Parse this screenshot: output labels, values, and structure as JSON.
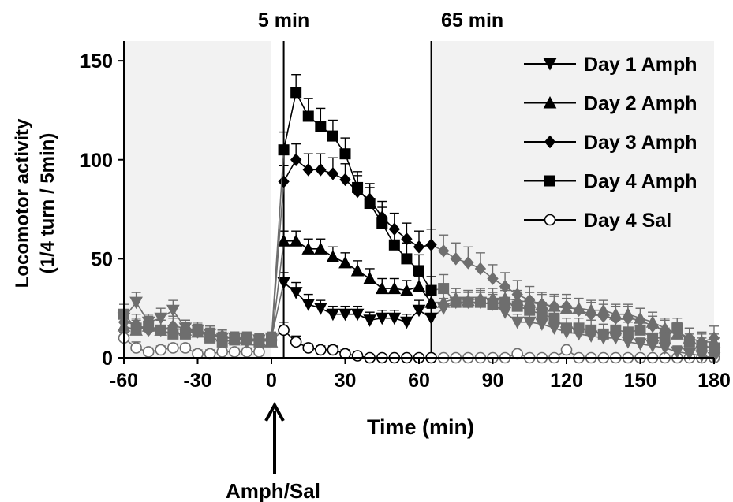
{
  "chart_data": {
    "type": "line",
    "xlabel": "Time (min)",
    "ylabel": "Locomotor activity",
    "ylabel2": "(1/4 turn / 5min)",
    "xlim": [
      -60,
      180
    ],
    "ylim": [
      0,
      160
    ],
    "xticks": [
      -60,
      -30,
      0,
      30,
      60,
      90,
      120,
      150,
      180
    ],
    "yticks": [
      0,
      50,
      100,
      150
    ],
    "grid": false,
    "legend": "top-right",
    "colors": {
      "highlight": "#000000",
      "faded": "#6e6e6e",
      "shade": "#f2f2f2",
      "axis": "#000000"
    },
    "shaded_regions": [
      [
        -60,
        0
      ],
      [
        65,
        180
      ]
    ],
    "vlines": [
      {
        "x": 5,
        "label": "5 min"
      },
      {
        "x": 65,
        "label": "65 min"
      }
    ],
    "annotation": {
      "x": 0,
      "label": "Amph/Sal"
    },
    "series": [
      {
        "name": "Day 1 Amph",
        "marker": "triangle-down",
        "fill": "filled",
        "x": [
          -60,
          -55,
          -50,
          -45,
          -40,
          -35,
          -30,
          -25,
          -20,
          -15,
          -10,
          -5,
          0,
          5,
          10,
          15,
          20,
          25,
          30,
          35,
          40,
          45,
          50,
          55,
          60,
          65,
          70,
          75,
          80,
          85,
          90,
          95,
          100,
          105,
          110,
          115,
          120,
          125,
          130,
          135,
          140,
          145,
          150,
          155,
          160,
          165,
          170,
          175,
          180
        ],
        "y": [
          20,
          28,
          18,
          20,
          24,
          15,
          14,
          12,
          10,
          10,
          8,
          9,
          10,
          38,
          33,
          27,
          25,
          22,
          22,
          22,
          19,
          20,
          20,
          18,
          24,
          20,
          25,
          28,
          28,
          28,
          27,
          23,
          18,
          18,
          17,
          15,
          13,
          12,
          11,
          10,
          10,
          8,
          7,
          6,
          5,
          3,
          2,
          1,
          0
        ],
        "err": [
          4,
          5,
          4,
          5,
          5,
          4,
          3,
          3,
          3,
          3,
          3,
          3,
          3,
          5,
          5,
          5,
          4,
          4,
          4,
          4,
          4,
          4,
          4,
          4,
          5,
          5,
          5,
          5,
          5,
          5,
          5,
          5,
          4,
          4,
          4,
          4,
          4,
          4,
          4,
          3,
          3,
          3,
          3,
          3,
          3,
          3,
          3,
          2,
          2
        ]
      },
      {
        "name": "Day 2 Amph",
        "marker": "triangle-up",
        "fill": "filled",
        "x": [
          -60,
          -55,
          -50,
          -45,
          -40,
          -35,
          -30,
          -25,
          -20,
          -15,
          -10,
          -5,
          0,
          5,
          10,
          15,
          20,
          25,
          30,
          35,
          40,
          45,
          50,
          55,
          60,
          65,
          70,
          75,
          80,
          85,
          90,
          95,
          100,
          105,
          110,
          115,
          120,
          125,
          130,
          135,
          140,
          145,
          150,
          155,
          160,
          165,
          170,
          175,
          180
        ],
        "y": [
          16,
          14,
          16,
          14,
          15,
          14,
          13,
          12,
          11,
          10,
          9,
          9,
          8,
          59,
          59,
          55,
          55,
          51,
          48,
          44,
          40,
          35,
          35,
          34,
          36,
          28,
          28,
          30,
          29,
          30,
          30,
          30,
          29,
          28,
          27,
          26,
          25,
          25,
          24,
          24,
          22,
          22,
          20,
          18,
          15,
          12,
          10,
          8,
          8
        ],
        "err": [
          5,
          5,
          5,
          5,
          5,
          4,
          4,
          4,
          3,
          3,
          3,
          3,
          3,
          5,
          5,
          5,
          5,
          5,
          5,
          5,
          5,
          5,
          5,
          5,
          5,
          5,
          5,
          5,
          5,
          5,
          5,
          5,
          5,
          5,
          5,
          5,
          5,
          5,
          5,
          5,
          5,
          5,
          5,
          5,
          5,
          5,
          5,
          4,
          4
        ]
      },
      {
        "name": "Day 3 Amph",
        "marker": "diamond",
        "fill": "filled",
        "x": [
          -60,
          -55,
          -50,
          -45,
          -40,
          -35,
          -30,
          -25,
          -20,
          -15,
          -10,
          -5,
          0,
          5,
          10,
          15,
          20,
          25,
          30,
          35,
          40,
          45,
          50,
          55,
          60,
          65,
          70,
          75,
          80,
          85,
          90,
          95,
          100,
          105,
          110,
          115,
          120,
          125,
          130,
          135,
          140,
          145,
          150,
          155,
          160,
          165,
          170,
          175,
          180
        ],
        "y": [
          18,
          17,
          14,
          14,
          16,
          15,
          13,
          12,
          11,
          10,
          10,
          9,
          9,
          89,
          100,
          95,
          95,
          93,
          90,
          84,
          80,
          71,
          65,
          60,
          56,
          57,
          54,
          50,
          48,
          45,
          40,
          36,
          32,
          29,
          27,
          26,
          26,
          24,
          22,
          21,
          20,
          20,
          19,
          16,
          14,
          13,
          10,
          8,
          10
        ],
        "err": [
          5,
          5,
          5,
          5,
          5,
          4,
          4,
          4,
          3,
          3,
          3,
          3,
          3,
          8,
          8,
          8,
          8,
          8,
          8,
          8,
          8,
          8,
          8,
          8,
          8,
          8,
          8,
          8,
          8,
          8,
          7,
          7,
          7,
          7,
          6,
          6,
          6,
          6,
          6,
          6,
          6,
          6,
          6,
          5,
          5,
          5,
          5,
          5,
          6
        ]
      },
      {
        "name": "Day 4 Amph",
        "marker": "square",
        "fill": "filled",
        "x": [
          -60,
          -55,
          -50,
          -45,
          -40,
          -35,
          -30,
          -25,
          -20,
          -15,
          -10,
          -5,
          0,
          5,
          10,
          15,
          20,
          25,
          30,
          35,
          40,
          45,
          50,
          55,
          60,
          65,
          70,
          75,
          80,
          85,
          90,
          95,
          100,
          105,
          110,
          115,
          120,
          125,
          130,
          135,
          140,
          145,
          150,
          155,
          160,
          165,
          170,
          175,
          180
        ],
        "y": [
          22,
          15,
          16,
          14,
          12,
          12,
          14,
          10,
          8,
          9,
          10,
          8,
          9,
          105,
          134,
          122,
          117,
          112,
          103,
          86,
          78,
          68,
          57,
          50,
          44,
          34,
          35,
          28,
          28,
          28,
          27,
          28,
          26,
          24,
          22,
          20,
          15,
          15,
          14,
          12,
          14,
          13,
          14,
          10,
          10,
          15,
          8,
          6,
          5
        ],
        "err": [
          5,
          5,
          5,
          5,
          4,
          4,
          4,
          3,
          3,
          3,
          3,
          3,
          3,
          9,
          9,
          9,
          9,
          8,
          8,
          8,
          8,
          8,
          8,
          8,
          8,
          7,
          7,
          7,
          6,
          6,
          6,
          6,
          6,
          6,
          6,
          5,
          5,
          5,
          5,
          5,
          5,
          5,
          5,
          5,
          5,
          5,
          4,
          4,
          4
        ]
      },
      {
        "name": "Day 4 Sal",
        "marker": "circle",
        "fill": "open",
        "x": [
          -60,
          -55,
          -50,
          -45,
          -40,
          -35,
          -30,
          -25,
          -20,
          -15,
          -10,
          -5,
          0,
          5,
          10,
          15,
          20,
          25,
          30,
          35,
          40,
          45,
          50,
          55,
          60,
          65,
          70,
          75,
          80,
          85,
          90,
          95,
          100,
          105,
          110,
          115,
          120,
          125,
          130,
          135,
          140,
          145,
          150,
          155,
          160,
          165,
          170,
          175,
          180
        ],
        "y": [
          10,
          5,
          3,
          4,
          5,
          5,
          2,
          2,
          3,
          3,
          3,
          3,
          9,
          14,
          8,
          5,
          4,
          4,
          2,
          1,
          0,
          0,
          0,
          0,
          0,
          0,
          0,
          0,
          0,
          0,
          0,
          0,
          2,
          0,
          0,
          0,
          4,
          0,
          0,
          0,
          0,
          0,
          0,
          0,
          0,
          0,
          0,
          0,
          0
        ],
        "err": [
          3,
          3,
          2,
          2,
          2,
          2,
          2,
          2,
          2,
          2,
          2,
          2,
          3,
          4,
          3,
          2,
          2,
          2,
          2,
          1,
          1,
          1,
          1,
          1,
          1,
          1,
          1,
          1,
          1,
          1,
          1,
          1,
          1,
          1,
          1,
          1,
          1,
          1,
          1,
          1,
          1,
          1,
          1,
          1,
          1,
          1,
          1,
          1,
          1
        ]
      }
    ]
  }
}
